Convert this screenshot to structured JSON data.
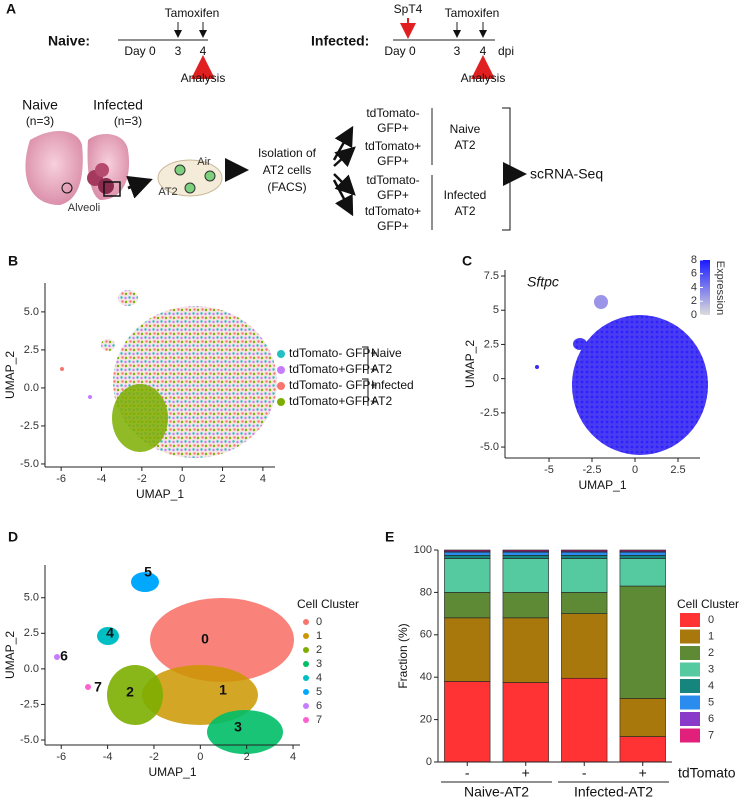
{
  "panel_a": {
    "label": "A",
    "naive_timeline": {
      "title": "Naive:",
      "start": "Day 0",
      "tick_3": "3",
      "tick_4": "4",
      "treatment": "Tamoxifen",
      "endpoint": "Analysis"
    },
    "infected_timeline": {
      "title": "Infected:",
      "infection": "SpT4",
      "start": "Day 0",
      "tick_3": "3",
      "tick_4": "4",
      "unit": "dpi",
      "treatment": "Tamoxifen",
      "endpoint": "Analysis"
    },
    "lungs": {
      "naive": "Naive",
      "naive_n": "(n=3)",
      "infected": "Infected",
      "infected_n": "(n=3)",
      "alveoli": "Alveoli"
    },
    "alveolus": {
      "air": "Air",
      "cell": "AT2"
    },
    "isolation": [
      "Isolation of",
      "AT2 cells",
      "(FACS)"
    ],
    "populations": [
      [
        "tdTomato-",
        "GFP+"
      ],
      [
        "tdTomato+",
        "GFP+"
      ],
      [
        "tdTomato-",
        "GFP+"
      ],
      [
        "tdTomato+",
        "GFP+"
      ]
    ],
    "groups": [
      [
        "Naive",
        "AT2"
      ],
      [
        "Infected",
        "AT2"
      ]
    ],
    "readout": "scRNA-Seq"
  },
  "chart_data": [
    {
      "type": "scatter",
      "panel_label": "B",
      "x_label": "UMAP_1",
      "y_label": "UMAP_2",
      "xlim": [
        -6.8,
        4.6
      ],
      "ylim": [
        -5.2,
        6.9
      ],
      "xticks": [
        -6,
        -4,
        -2,
        0,
        2,
        4
      ],
      "yticks": [
        {
          "value": -5,
          "label": "-5.0"
        },
        {
          "value": -2.5,
          "label": "-2.5"
        },
        {
          "value": 0,
          "label": "0.0"
        },
        2.5,
        {
          "value": 5,
          "label": "5.0"
        }
      ],
      "series": [
        {
          "name": "tdTomato- GFP+",
          "color": "#22bfc4"
        },
        {
          "name": "tdTomato+GFP+",
          "color": "#c77cff"
        },
        {
          "name": "tdTomato- GFP+",
          "color": "#f8766d"
        },
        {
          "name": "tdTomato+GFP+",
          "color": "#7cae00"
        }
      ],
      "legend_groups": [
        [
          "Naive",
          "AT2"
        ],
        [
          "Infected",
          "AT2"
        ]
      ]
    },
    {
      "type": "scatter",
      "panel_label": "C",
      "title": "Sftpc",
      "x_label": "UMAP_1",
      "y_label": "UMAP_2",
      "xlim": [
        -7.56,
        3.78
      ],
      "ylim": [
        -5.8,
        7.94
      ],
      "xticks": [
        -5,
        -2.5,
        0,
        2.5
      ],
      "yticks": [
        {
          "value": -5,
          "label": "-5.0"
        },
        -2.5,
        0,
        2.5,
        5,
        7.5
      ],
      "colorbar": {
        "label": "Expression",
        "lim": [
          0,
          8
        ],
        "ticks": [
          0,
          2,
          4,
          6,
          8
        ],
        "colors": [
          "#dcdcdc",
          "#1a1aff"
        ]
      }
    },
    {
      "type": "scatter",
      "panel_label": "D",
      "x_label": "UMAP_1",
      "y_label": "UMAP_2",
      "legend_title": "Cell Cluster",
      "xlim": [
        -6.7,
        4.3
      ],
      "ylim": [
        -5.35,
        7.3
      ],
      "xticks": [
        -6,
        -4,
        -2,
        0,
        2,
        4
      ],
      "yticks": [
        {
          "value": -5,
          "label": "-5.0"
        },
        {
          "value": -2.5,
          "label": "-2.5"
        },
        {
          "value": 0,
          "label": "0.0"
        },
        2.5,
        {
          "value": 5,
          "label": "5.0"
        }
      ],
      "series": [
        {
          "name": "0",
          "color": "#f8766d"
        },
        {
          "name": "1",
          "color": "#cd9600"
        },
        {
          "name": "2",
          "color": "#7cae00"
        },
        {
          "name": "3",
          "color": "#00be67"
        },
        {
          "name": "4",
          "color": "#00bfc4"
        },
        {
          "name": "5",
          "color": "#00a9ff"
        },
        {
          "name": "6",
          "color": "#c77cff"
        },
        {
          "name": "7",
          "color": "#ff61cc"
        }
      ]
    },
    {
      "type": "bar",
      "panel_label": "E",
      "y_label": "Fraction (%)",
      "x_label": "tdTomato",
      "legend_title": "Cell Cluster",
      "categories": [
        "-",
        "+",
        "-",
        "+"
      ],
      "groups": [
        "Naive-AT2",
        "Infected-AT2"
      ],
      "ylim": [
        0,
        100
      ],
      "yticks": [
        0,
        20,
        40,
        60,
        80,
        100
      ],
      "series": [
        {
          "name": "0",
          "color": "#ff3333",
          "values": [
            38,
            37.5,
            39.5,
            12
          ]
        },
        {
          "name": "1",
          "color": "#a8780d",
          "values": [
            30,
            30.5,
            30.5,
            18
          ]
        },
        {
          "name": "2",
          "color": "#5e8a36",
          "values": [
            12,
            12,
            10,
            53
          ]
        },
        {
          "name": "3",
          "color": "#55c9a0",
          "values": [
            16,
            16,
            16,
            13
          ]
        },
        {
          "name": "4",
          "color": "#16857e",
          "values": [
            1.5,
            1.5,
            1.5,
            1.5
          ]
        },
        {
          "name": "5",
          "color": "#2b8cf0",
          "values": [
            1.5,
            1.5,
            1.5,
            1.5
          ]
        },
        {
          "name": "6",
          "color": "#8a3ac8",
          "values": [
            0.5,
            0.5,
            0.5,
            0.5
          ]
        },
        {
          "name": "7",
          "color": "#e0207a",
          "values": [
            0.5,
            0.5,
            0.5,
            0.5
          ]
        }
      ]
    }
  ]
}
